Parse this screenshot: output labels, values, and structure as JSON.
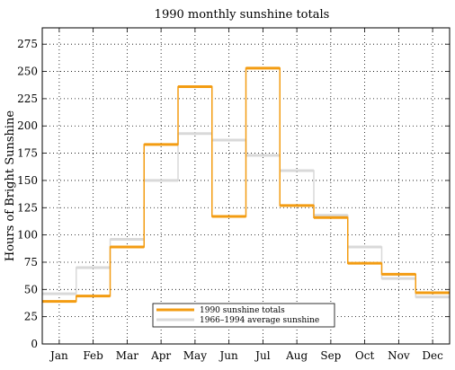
{
  "chart_data": {
    "type": "line",
    "title": "1990 monthly sunshine totals",
    "xlabel": "",
    "ylabel": "Hours of Bright Sunshine",
    "categories": [
      "Jan",
      "Feb",
      "Mar",
      "Apr",
      "May",
      "Jun",
      "Jul",
      "Aug",
      "Sep",
      "Oct",
      "Nov",
      "Dec"
    ],
    "ylim": [
      0,
      290
    ],
    "yticks": [
      0,
      25,
      50,
      75,
      100,
      125,
      150,
      175,
      200,
      225,
      250,
      275
    ],
    "grid": true,
    "legend_position": "bottom-center",
    "step_style": "step",
    "series": [
      {
        "name": "1990 sunshine totals",
        "color": "#f39c12",
        "values": [
          39,
          44,
          89,
          183,
          236,
          117,
          253,
          127,
          116,
          74,
          64,
          47
        ]
      },
      {
        "name": "1966–1994 average sunshine",
        "color": "#d9d9d9",
        "values": [
          46,
          70,
          96,
          150,
          193,
          187,
          173,
          159,
          118,
          89,
          60,
          43
        ]
      }
    ]
  }
}
